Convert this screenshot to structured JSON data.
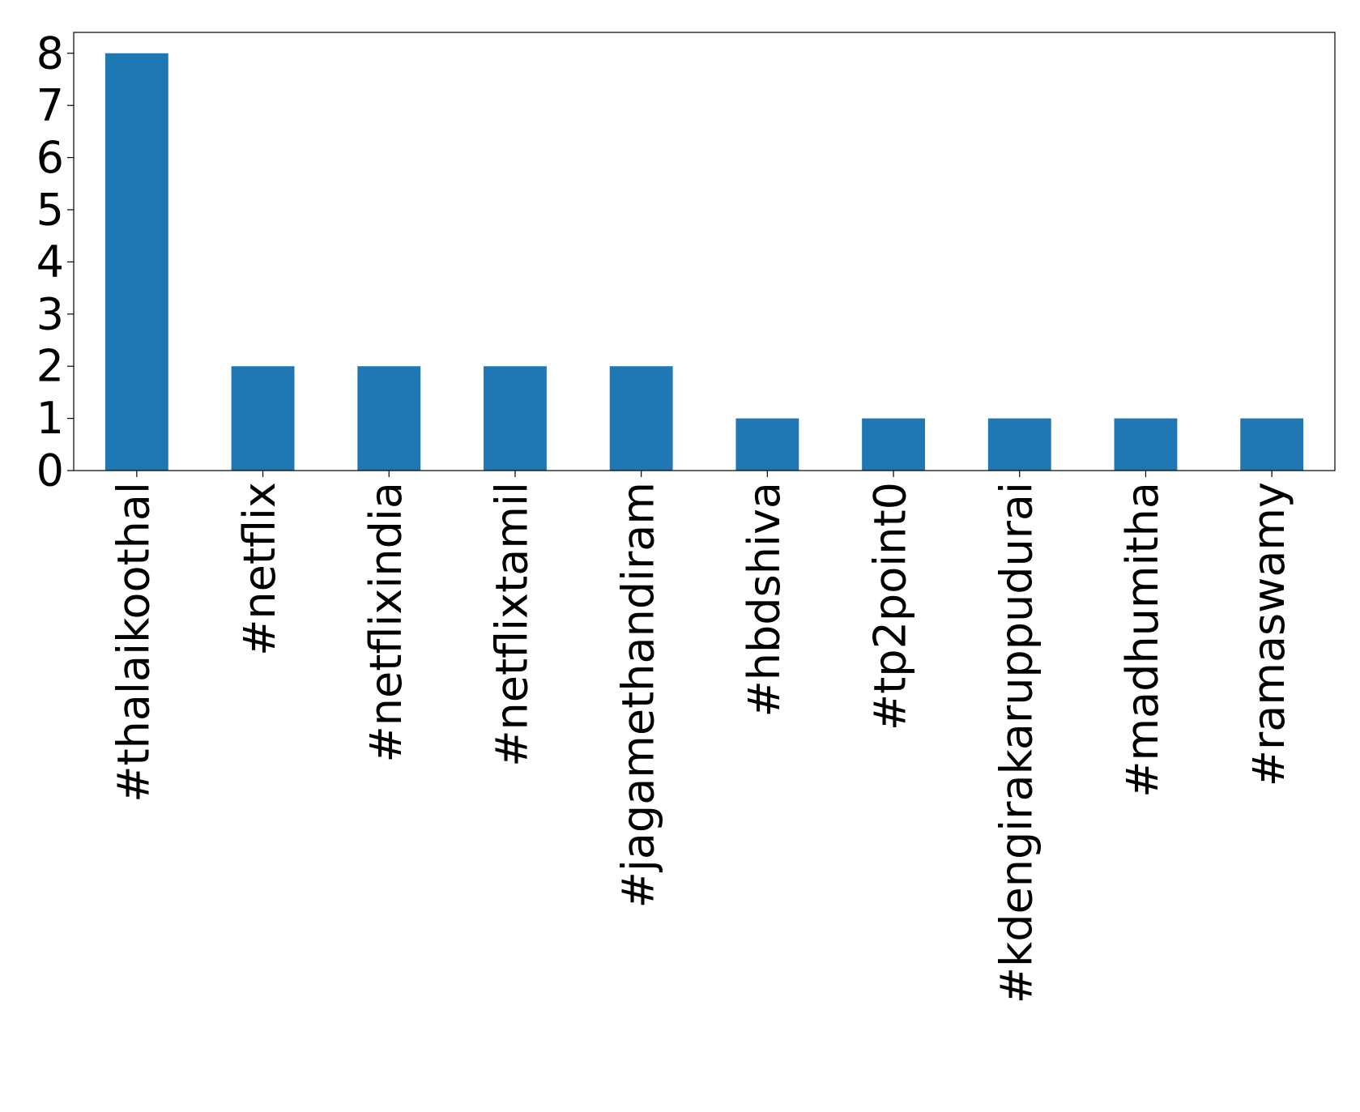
{
  "chart_data": {
    "type": "bar",
    "categories": [
      "#thalaikoothal",
      "#netflix",
      "#netflixindia",
      "#netflixtamil",
      "#jagamethandiram",
      "#hbdshiva",
      "#tp2point0",
      "#kdengirakaruppudurai",
      "#madhumitha",
      "#ramaswamy"
    ],
    "values": [
      8,
      2,
      2,
      2,
      2,
      1,
      1,
      1,
      1,
      1
    ],
    "color": "#1f77b4",
    "ylim": [
      0,
      8.4
    ],
    "yticks": [
      0,
      1,
      2,
      3,
      4,
      5,
      6,
      7,
      8
    ],
    "grid": false
  }
}
